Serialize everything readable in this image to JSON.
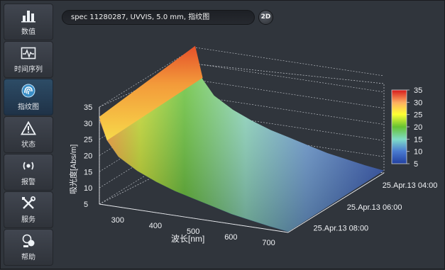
{
  "sidebar": {
    "items": [
      {
        "label": "数值",
        "icon": "bar-chart-icon",
        "active": false
      },
      {
        "label": "时间序列",
        "icon": "pulse-monitor-icon",
        "active": false
      },
      {
        "label": "指纹图",
        "icon": "fingerprint-icon",
        "active": true
      },
      {
        "label": "状态",
        "icon": "warning-triangle-icon",
        "active": false
      },
      {
        "label": "报警",
        "icon": "alarm-broadcast-icon",
        "active": false
      },
      {
        "label": "服务",
        "icon": "tools-icon",
        "active": false
      },
      {
        "label": "帮助",
        "icon": "help-icon",
        "active": false
      }
    ]
  },
  "header": {
    "title": "spec 11280287, UVVIS, 5.0 mm, 指纹图",
    "view_toggle_label": "2D"
  },
  "colors": {
    "accent": "#2d4c66",
    "background": "#30353c"
  },
  "chart_data": {
    "type": "surface-3d",
    "xlabel": "波长[nm]",
    "ylabel": "吸光度[Abs/m]",
    "x_ticks": [
      "300",
      "400",
      "500",
      "600",
      "700"
    ],
    "z_ticks": [
      "5",
      "10",
      "15",
      "20",
      "25",
      "30",
      "35"
    ],
    "time_ticks": [
      "25.Apr.13 04:00",
      "25.Apr.13 06:00",
      "25.Apr.13 08:00"
    ],
    "colorbar_ticks": [
      "35",
      "30",
      "25",
      "20",
      "15",
      "10",
      "5"
    ],
    "colorbar_range": [
      5,
      35
    ],
    "colormap": [
      "#d7191c",
      "#fdae61",
      "#ffff33",
      "#66c232",
      "#7fdcc8",
      "#4a7bd0",
      "#2140a0"
    ],
    "x_range": [
      250,
      750
    ],
    "z_range": [
      5,
      35
    ],
    "profile": [
      {
        "wavelength": 250,
        "absorbance": 31
      },
      {
        "wavelength": 270,
        "absorbance": 25
      },
      {
        "wavelength": 300,
        "absorbance": 20.5
      },
      {
        "wavelength": 350,
        "absorbance": 17
      },
      {
        "wavelength": 400,
        "absorbance": 14.5
      },
      {
        "wavelength": 450,
        "absorbance": 12.5
      },
      {
        "wavelength": 500,
        "absorbance": 11
      },
      {
        "wavelength": 550,
        "absorbance": 9.5
      },
      {
        "wavelength": 600,
        "absorbance": 8
      },
      {
        "wavelength": 650,
        "absorbance": 7
      },
      {
        "wavelength": 700,
        "absorbance": 6
      },
      {
        "wavelength": 750,
        "absorbance": 5.2
      }
    ]
  }
}
